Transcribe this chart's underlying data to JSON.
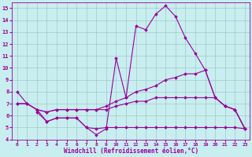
{
  "xlabel": "Windchill (Refroidissement éolien,°C)",
  "background_color": "#c8eef0",
  "line_color": "#990099",
  "xlim": [
    -0.5,
    23.5
  ],
  "ylim": [
    4,
    15.5
  ],
  "yticks": [
    4,
    5,
    6,
    7,
    8,
    9,
    10,
    11,
    12,
    13,
    14,
    15
  ],
  "xticks": [
    0,
    1,
    2,
    3,
    4,
    5,
    6,
    7,
    8,
    9,
    10,
    11,
    12,
    13,
    14,
    15,
    16,
    17,
    18,
    19,
    20,
    21,
    22,
    23
  ],
  "line1": {
    "x": [
      0,
      1,
      2,
      3,
      4,
      5,
      6,
      7,
      8,
      9,
      10,
      11,
      12,
      13,
      14,
      15,
      16,
      17,
      18,
      19,
      20,
      21,
      22,
      23
    ],
    "y": [
      8.0,
      7.0,
      6.5,
      5.5,
      5.8,
      5.8,
      5.8,
      5.0,
      4.4,
      4.9,
      10.8,
      7.5,
      13.5,
      13.2,
      14.5,
      15.2,
      14.3,
      12.5,
      11.2,
      9.8,
      7.5,
      6.8,
      6.5,
      4.9
    ]
  },
  "line2": {
    "x": [
      0,
      1,
      2,
      3,
      4,
      5,
      6,
      7,
      8,
      9,
      10,
      11,
      12,
      13,
      14,
      15,
      16,
      17,
      18,
      19,
      20,
      21,
      22,
      23
    ],
    "y": [
      7.0,
      7.0,
      6.5,
      6.3,
      6.5,
      6.5,
      6.5,
      6.5,
      6.5,
      6.8,
      7.2,
      7.5,
      8.0,
      8.2,
      8.5,
      9.0,
      9.2,
      9.5,
      9.5,
      9.8,
      7.5,
      6.8,
      6.5,
      4.9
    ]
  },
  "line3": {
    "x": [
      0,
      1,
      2,
      3,
      4,
      5,
      6,
      7,
      8,
      9,
      10,
      11,
      12,
      13,
      14,
      15,
      16,
      17,
      18,
      19,
      20,
      21,
      22,
      23
    ],
    "y": [
      7.0,
      7.0,
      6.5,
      6.3,
      6.5,
      6.5,
      6.5,
      6.5,
      6.5,
      6.5,
      6.8,
      7.0,
      7.2,
      7.2,
      7.5,
      7.5,
      7.5,
      7.5,
      7.5,
      7.5,
      7.5,
      6.8,
      6.5,
      4.9
    ]
  },
  "line4": {
    "x": [
      2,
      3,
      4,
      5,
      6,
      7,
      8,
      9,
      10,
      11,
      12,
      13,
      14,
      15,
      16,
      17,
      18,
      19,
      20,
      21,
      22,
      23
    ],
    "y": [
      6.3,
      5.5,
      5.8,
      5.8,
      5.8,
      5.0,
      4.9,
      5.0,
      5.0,
      5.0,
      5.0,
      5.0,
      5.0,
      5.0,
      5.0,
      5.0,
      5.0,
      5.0,
      5.0,
      5.0,
      5.0,
      4.9
    ]
  }
}
